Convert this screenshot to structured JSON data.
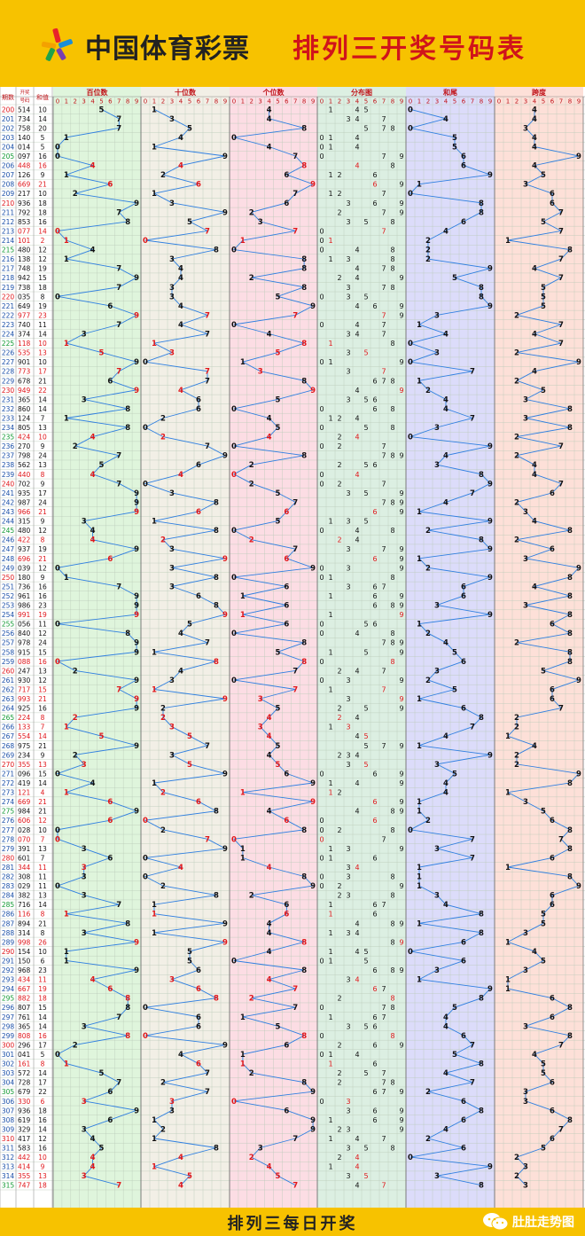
{
  "header": {
    "brand": "中国体育彩票",
    "slogan": "排列三开奖号码表"
  },
  "footer": {
    "title": "排列三每日开奖",
    "account": "肚肚走势图",
    "wechat_icon": "wechat-icon"
  },
  "colors": {
    "background": "#f7c200",
    "hundreds_bg": "#dff5dc",
    "tens_bg": "#f2efe6",
    "units_bg": "#fcdde4",
    "distribution_bg": "#dcefe2",
    "sum_tail_bg": "#dcdcfa",
    "span_bg": "#fde0d8",
    "line": "#2f7fe0",
    "highlight": "#e0161a",
    "issue_red": "#e0161a",
    "issue_green": "#129a33"
  },
  "chart_data": {
    "type": "table",
    "columns": {
      "issue": "期数",
      "numbers": "开奖号码",
      "sum": "和值",
      "hundreds": "百位数",
      "tens": "十位数",
      "units": "个位数",
      "distribution": "分布图",
      "sum_tail": "和尾",
      "span": "跨度"
    },
    "digit_labels": [
      "0",
      "1",
      "2",
      "3",
      "4",
      "5",
      "6",
      "7",
      "8",
      "9"
    ],
    "rows": [
      [
        "200",
        "514",
        "10"
      ],
      [
        "201",
        "734",
        "14"
      ],
      [
        "202",
        "758",
        "20"
      ],
      [
        "203",
        "140",
        "5"
      ],
      [
        "204",
        "014",
        "5"
      ],
      [
        "205",
        "097",
        "16"
      ],
      [
        "206",
        "448",
        "16"
      ],
      [
        "207",
        "126",
        "9"
      ],
      [
        "208",
        "669",
        "21"
      ],
      [
        "209",
        "217",
        "10"
      ],
      [
        "210",
        "936",
        "18"
      ],
      [
        "211",
        "792",
        "18"
      ],
      [
        "212",
        "853",
        "16"
      ],
      [
        "213",
        "077",
        "14"
      ],
      [
        "214",
        "101",
        "2"
      ],
      [
        "215",
        "480",
        "12"
      ],
      [
        "216",
        "138",
        "12"
      ],
      [
        "217",
        "748",
        "19"
      ],
      [
        "218",
        "942",
        "15"
      ],
      [
        "219",
        "738",
        "18"
      ],
      [
        "220",
        "035",
        "8"
      ],
      [
        "221",
        "649",
        "19"
      ],
      [
        "222",
        "977",
        "23"
      ],
      [
        "223",
        "740",
        "11"
      ],
      [
        "224",
        "374",
        "14"
      ],
      [
        "225",
        "118",
        "10"
      ],
      [
        "226",
        "535",
        "13"
      ],
      [
        "227",
        "901",
        "10"
      ],
      [
        "228",
        "773",
        "17"
      ],
      [
        "229",
        "678",
        "21"
      ],
      [
        "230",
        "949",
        "22"
      ],
      [
        "231",
        "365",
        "14"
      ],
      [
        "232",
        "860",
        "14"
      ],
      [
        "233",
        "124",
        "7"
      ],
      [
        "234",
        "805",
        "13"
      ],
      [
        "235",
        "424",
        "10"
      ],
      [
        "236",
        "270",
        "9"
      ],
      [
        "237",
        "798",
        "24"
      ],
      [
        "238",
        "562",
        "13"
      ],
      [
        "239",
        "440",
        "8"
      ],
      [
        "240",
        "702",
        "9"
      ],
      [
        "241",
        "935",
        "17"
      ],
      [
        "242",
        "987",
        "24"
      ],
      [
        "243",
        "966",
        "21"
      ],
      [
        "244",
        "315",
        "9"
      ],
      [
        "245",
        "480",
        "12"
      ],
      [
        "246",
        "422",
        "8"
      ],
      [
        "247",
        "937",
        "19"
      ],
      [
        "248",
        "696",
        "21"
      ],
      [
        "249",
        "039",
        "12"
      ],
      [
        "250",
        "180",
        "9"
      ],
      [
        "251",
        "736",
        "16"
      ],
      [
        "252",
        "961",
        "16"
      ],
      [
        "253",
        "986",
        "23"
      ],
      [
        "254",
        "991",
        "19"
      ],
      [
        "255",
        "056",
        "11"
      ],
      [
        "256",
        "840",
        "12"
      ],
      [
        "257",
        "978",
        "24"
      ],
      [
        "258",
        "915",
        "15"
      ],
      [
        "259",
        "088",
        "16"
      ],
      [
        "260",
        "247",
        "13"
      ],
      [
        "261",
        "930",
        "12"
      ],
      [
        "262",
        "717",
        "15"
      ],
      [
        "263",
        "993",
        "21"
      ],
      [
        "264",
        "925",
        "16"
      ],
      [
        "265",
        "224",
        "8"
      ],
      [
        "266",
        "133",
        "7"
      ],
      [
        "267",
        "554",
        "14"
      ],
      [
        "268",
        "975",
        "21"
      ],
      [
        "269",
        "234",
        "9"
      ],
      [
        "270",
        "355",
        "13"
      ],
      [
        "271",
        "096",
        "15"
      ],
      [
        "272",
        "419",
        "14"
      ],
      [
        "273",
        "121",
        "4"
      ],
      [
        "274",
        "669",
        "21"
      ],
      [
        "275",
        "984",
        "21"
      ],
      [
        "276",
        "606",
        "12"
      ],
      [
        "277",
        "028",
        "10"
      ],
      [
        "278",
        "070",
        "7"
      ],
      [
        "279",
        "391",
        "13"
      ],
      [
        "280",
        "601",
        "7"
      ],
      [
        "281",
        "344",
        "11"
      ],
      [
        "282",
        "308",
        "11"
      ],
      [
        "283",
        "029",
        "11"
      ],
      [
        "284",
        "382",
        "13"
      ],
      [
        "285",
        "716",
        "14"
      ],
      [
        "286",
        "116",
        "8"
      ],
      [
        "287",
        "894",
        "21"
      ],
      [
        "288",
        "314",
        "8"
      ],
      [
        "289",
        "998",
        "26"
      ],
      [
        "290",
        "154",
        "10"
      ],
      [
        "291",
        "150",
        "6"
      ],
      [
        "292",
        "968",
        "23"
      ],
      [
        "293",
        "434",
        "11"
      ],
      [
        "294",
        "667",
        "19"
      ],
      [
        "295",
        "882",
        "18"
      ],
      [
        "296",
        "807",
        "15"
      ],
      [
        "297",
        "761",
        "14"
      ],
      [
        "298",
        "365",
        "14"
      ],
      [
        "299",
        "808",
        "16"
      ],
      [
        "300",
        "296",
        "17"
      ],
      [
        "301",
        "041",
        "5"
      ],
      [
        "302",
        "161",
        "8"
      ],
      [
        "303",
        "572",
        "14"
      ],
      [
        "304",
        "728",
        "17"
      ],
      [
        "305",
        "679",
        "22"
      ],
      [
        "306",
        "330",
        "6"
      ],
      [
        "307",
        "936",
        "18"
      ],
      [
        "308",
        "619",
        "16"
      ],
      [
        "309",
        "329",
        "14"
      ],
      [
        "310",
        "417",
        "12"
      ],
      [
        "311",
        "583",
        "16"
      ],
      [
        "312",
        "442",
        "10"
      ],
      [
        "313",
        "414",
        "9"
      ],
      [
        "314",
        "355",
        "13"
      ],
      [
        "315",
        "747",
        "18"
      ]
    ]
  }
}
